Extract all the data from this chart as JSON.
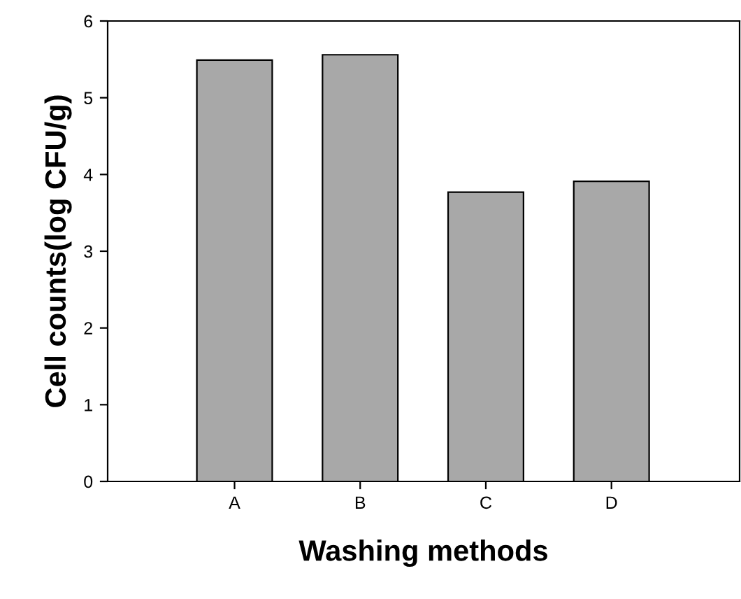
{
  "chart_data": {
    "type": "bar",
    "xlabel": "Washing methods",
    "ylabel": "Cell counts(log CFU/g)",
    "categories": [
      "A",
      "B",
      "C",
      "D"
    ],
    "values": [
      5.49,
      5.56,
      3.77,
      3.91
    ],
    "color": "#a8a8a8",
    "ylim": [
      0,
      6
    ],
    "yticks": [
      0,
      1,
      2,
      3,
      4,
      5,
      6
    ],
    "grid": false
  }
}
